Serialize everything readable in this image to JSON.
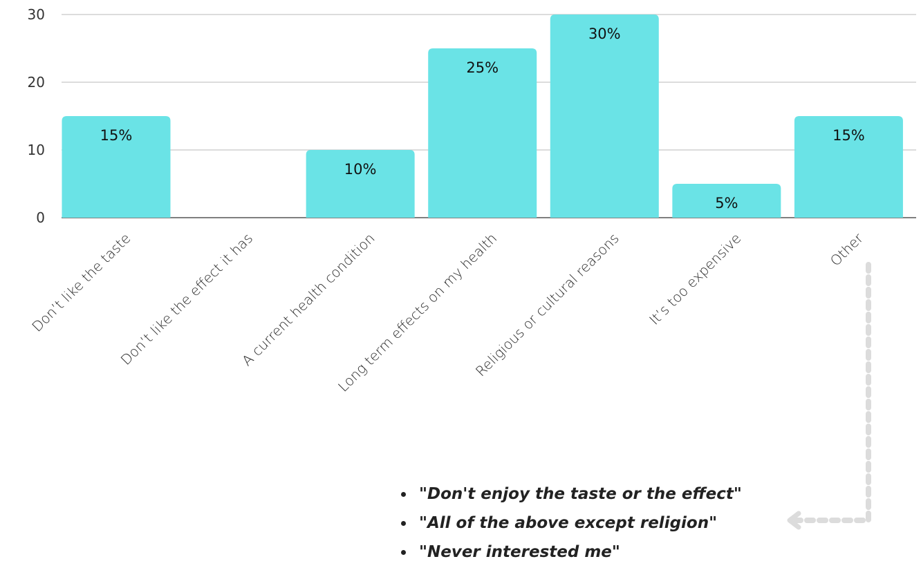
{
  "chart_data": {
    "type": "bar",
    "categories": [
      "Don’t like the taste",
      "Don’t like the effect it has",
      "A current health condition",
      "Long term effects on my health",
      "Religious or cultural reasons",
      "It’s too expensive",
      "Other"
    ],
    "values": [
      15,
      0,
      10,
      25,
      30,
      5,
      15
    ],
    "data_labels": [
      "15%",
      "",
      "10%",
      "25%",
      "30%",
      "5%",
      "15%"
    ],
    "yticks": [
      "0",
      "10",
      "20",
      "30"
    ],
    "ylim": [
      0,
      30
    ],
    "grid": true,
    "bar_color": "#6ae3e6",
    "title": "",
    "xlabel": "",
    "ylabel": ""
  },
  "annotation": {
    "quotes": [
      "\"Don't enjoy the taste or the effect\"",
      "\"All of the above except religion\"",
      "\"Never interested me\""
    ],
    "arrow_color": "#dcdcdc",
    "points_to": "Other"
  }
}
